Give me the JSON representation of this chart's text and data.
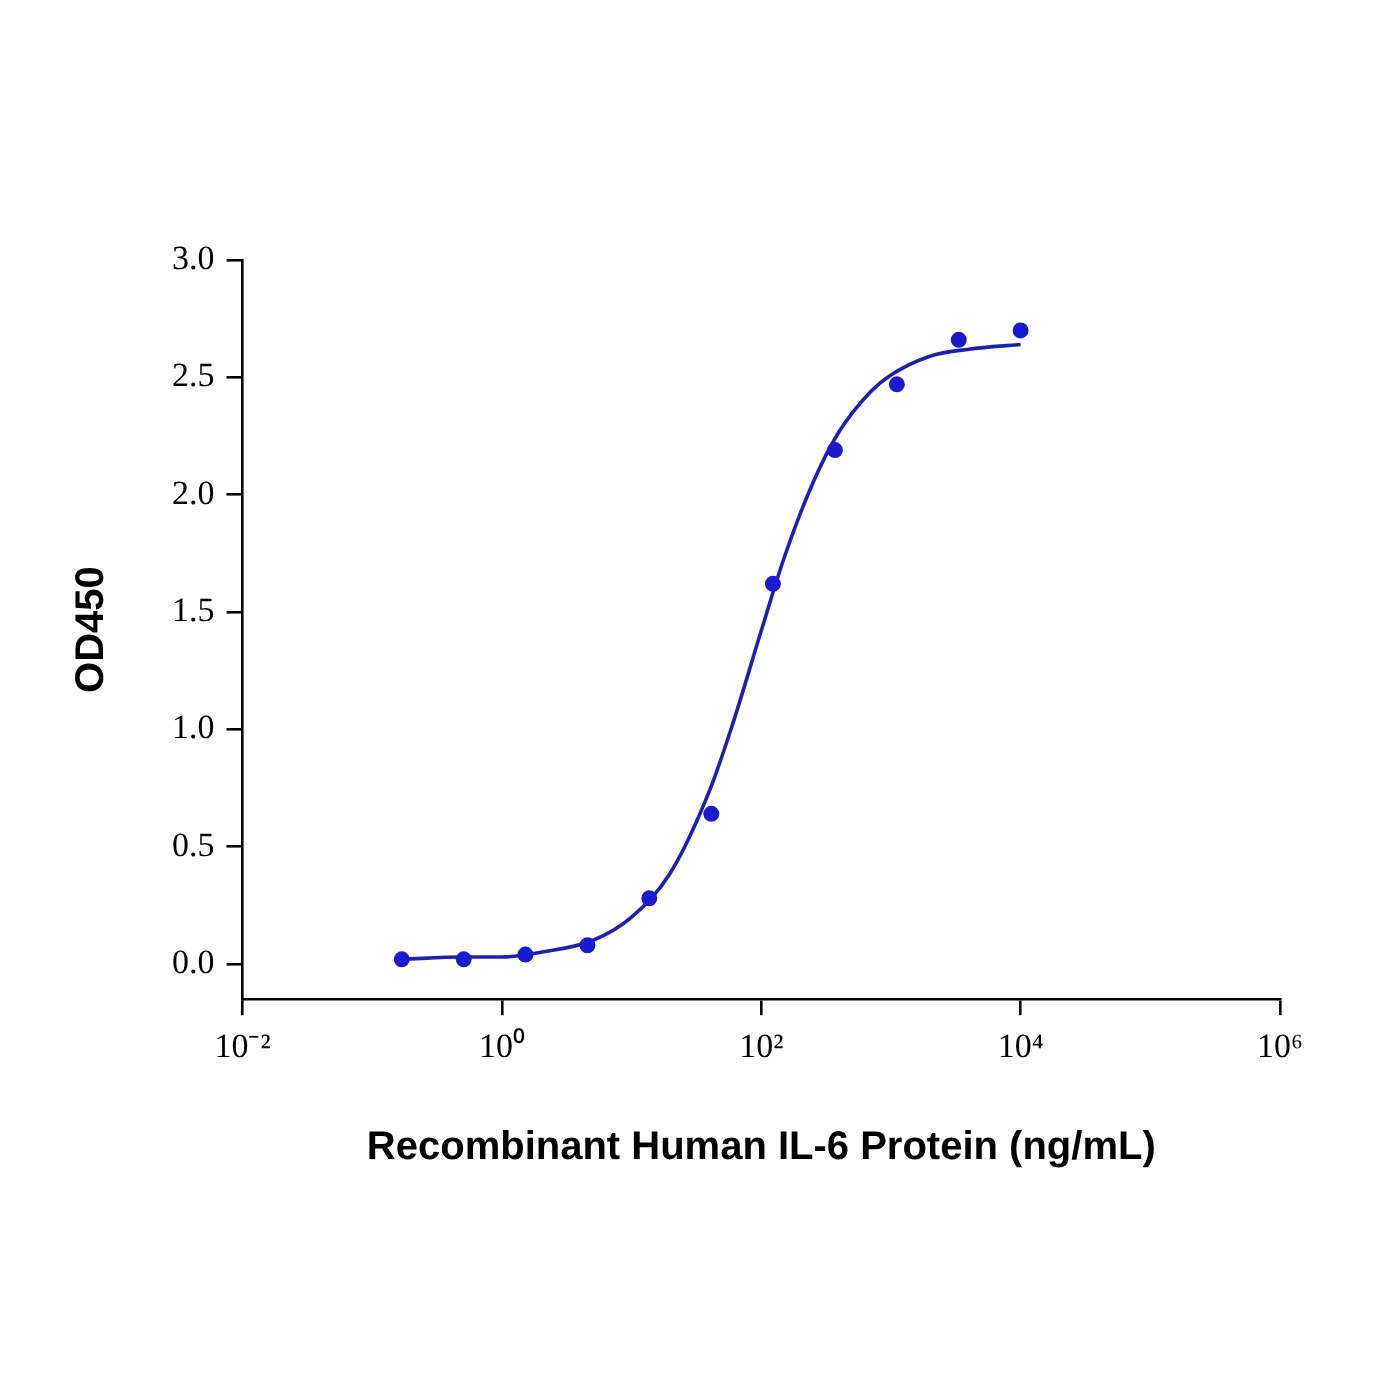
{
  "chart_data": {
    "type": "scatter",
    "xlabel": "Recombinant Human IL-6 Protein (ng/mL)",
    "ylabel": "OD450",
    "log": "x",
    "grid": false,
    "legend": false,
    "xlim": [
      0.01,
      1000000
    ],
    "xticks": [
      {
        "value": 0.01,
        "label": "10⁻²"
      },
      {
        "value": 1,
        "label": "10⁰"
      },
      {
        "value": 100,
        "label": "10²"
      },
      {
        "value": 10000,
        "label": "10⁴"
      },
      {
        "value": 1000000,
        "label": "10⁶"
      }
    ],
    "ylim": [
      -0.15,
      3.0
    ],
    "yticks": [
      {
        "value": 0,
        "label": "0.0"
      },
      {
        "value": 0.5,
        "label": "0.5"
      },
      {
        "value": 1,
        "label": "1.0"
      },
      {
        "value": 1.5,
        "label": "1.5"
      },
      {
        "value": 2,
        "label": "2.0"
      },
      {
        "value": 2.5,
        "label": "2.5"
      },
      {
        "value": 3,
        "label": "3.0"
      }
    ],
    "series": [
      {
        "type": "scatter",
        "marker": "circle",
        "color": "#1a1ad0",
        "x": [
          0.169,
          0.508,
          1.52,
          4.57,
          13.7,
          41.2,
          123,
          370,
          1111,
          3333,
          10000
        ],
        "values": [
          0.02,
          0.02,
          0.04,
          0.08,
          0.28,
          0.64,
          1.62,
          2.19,
          2.47,
          2.66,
          2.7
        ]
      },
      {
        "type": "line",
        "marker": "none",
        "line_style": "solid",
        "color": "#1f1fb0",
        "x": [
          0.17,
          0.5,
          1,
          2,
          5,
          10,
          20,
          40,
          60,
          100,
          150,
          250,
          400,
          700,
          1000,
          2000,
          4000,
          10000
        ],
        "values": [
          0.02,
          0.03,
          0.03,
          0.05,
          0.1,
          0.2,
          0.39,
          0.74,
          1.02,
          1.42,
          1.73,
          2.05,
          2.27,
          2.44,
          2.51,
          2.59,
          2.62,
          2.64
        ]
      }
    ]
  }
}
